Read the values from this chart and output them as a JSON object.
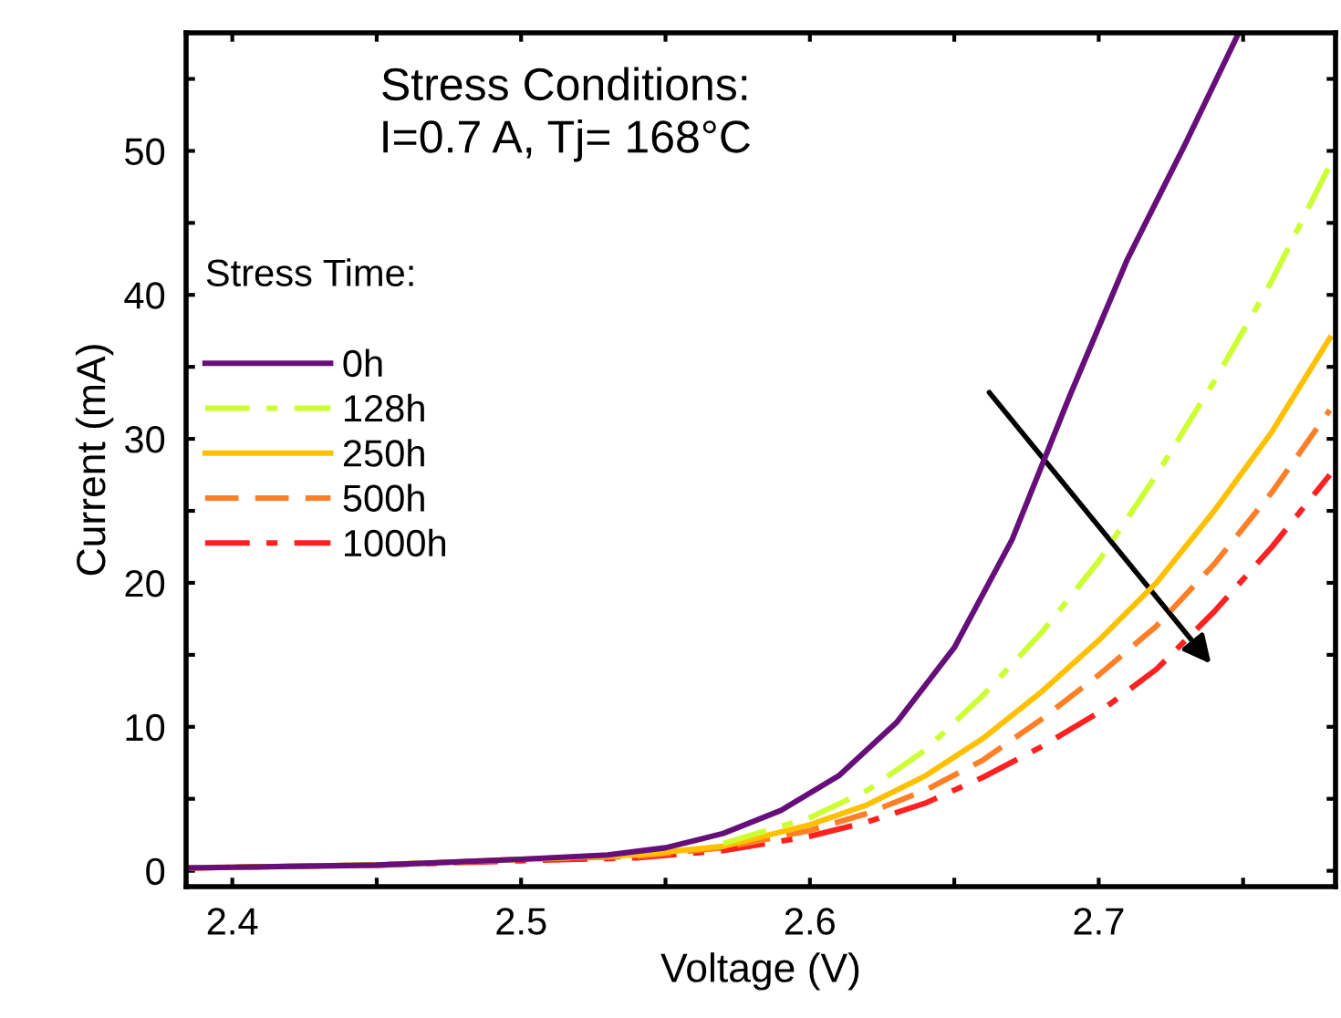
{
  "chart_data": {
    "type": "line",
    "xlabel": "Voltage (V)",
    "ylabel": "Current (mA)",
    "legend_title": "Stress Time:",
    "legend": "left",
    "annotations": [
      "Stress Conditions:\nI=0.7 A, Tj= 168°C"
    ],
    "xlim": [
      2.384,
      2.782
    ],
    "ylim": [
      -1.1,
      58.2
    ],
    "xticks": [
      2.4,
      {
        "value": 2.45,
        "label": null
      },
      2.5,
      {
        "value": 2.55,
        "label": null
      },
      2.6,
      {
        "value": 2.65,
        "label": null
      },
      2.7,
      {
        "value": 2.75,
        "label": null
      }
    ],
    "yticks": [
      0,
      {
        "value": 5,
        "label": null
      },
      10,
      {
        "value": 15,
        "label": null
      },
      20,
      {
        "value": 25,
        "label": null
      },
      30,
      {
        "value": 35,
        "label": null
      },
      40,
      {
        "value": 45,
        "label": null
      },
      50,
      {
        "value": 55,
        "label": null
      }
    ],
    "series": [
      {
        "name": "0h",
        "color": "#660f7a",
        "line_style": "solid",
        "x": [
          2.384,
          2.45,
          2.5,
          2.53,
          2.55,
          2.57,
          2.59,
          2.61,
          2.63,
          2.65,
          2.67,
          2.69,
          2.71,
          2.73,
          2.748
        ],
        "values": [
          0.2,
          0.4,
          0.8,
          1.1,
          1.6,
          2.6,
          4.2,
          6.6,
          10.3,
          15.5,
          23,
          33,
          42.5,
          50.5,
          58
        ]
      },
      {
        "name": "128h",
        "color": "#ccff33",
        "line_style": "dashdot",
        "x": [
          2.57,
          2.6,
          2.62,
          2.64,
          2.66,
          2.68,
          2.7,
          2.72,
          2.74,
          2.76,
          2.78
        ],
        "values": [
          1.9,
          3.7,
          5.6,
          8.4,
          12.2,
          16.5,
          21.5,
          27.5,
          34,
          41,
          49
        ]
      },
      {
        "name": "250h",
        "color": "#ffc000",
        "line_style": "solid",
        "x": [
          2.384,
          2.45,
          2.5,
          2.54,
          2.57,
          2.6,
          2.62,
          2.64,
          2.66,
          2.68,
          2.7,
          2.72,
          2.74,
          2.76,
          2.78
        ],
        "values": [
          0.2,
          0.4,
          0.8,
          1.1,
          1.7,
          3.2,
          4.6,
          6.6,
          9.2,
          12.4,
          16,
          20,
          25,
          30.5,
          37
        ]
      },
      {
        "name": "500h",
        "color": "#ff7f27",
        "line_style": "dashed",
        "x": [
          2.384,
          2.45,
          2.5,
          2.54,
          2.57,
          2.6,
          2.62,
          2.64,
          2.66,
          2.68,
          2.7,
          2.72,
          2.74,
          2.76,
          2.78
        ],
        "values": [
          0.2,
          0.4,
          0.8,
          1.0,
          1.6,
          2.8,
          4,
          5.6,
          7.7,
          10.5,
          13.6,
          17,
          21.3,
          26.3,
          32
        ]
      },
      {
        "name": "1000h",
        "color": "#ff2020",
        "line_style": "dashdot",
        "x": [
          2.384,
          2.45,
          2.5,
          2.54,
          2.57,
          2.6,
          2.62,
          2.64,
          2.66,
          2.68,
          2.7,
          2.72,
          2.74,
          2.76,
          2.78
        ],
        "values": [
          0.2,
          0.4,
          0.7,
          0.9,
          1.4,
          2.4,
          3.4,
          4.7,
          6.5,
          8.6,
          11,
          14,
          18,
          22.5,
          27.5
        ]
      }
    ]
  }
}
